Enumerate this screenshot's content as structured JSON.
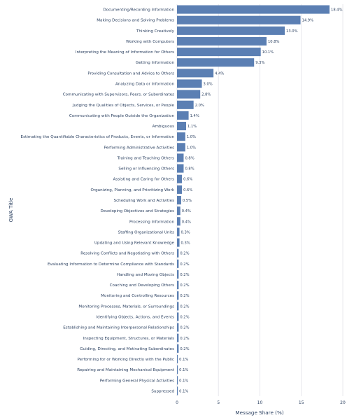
{
  "chart_data": {
    "type": "bar",
    "orientation": "horizontal",
    "title": "",
    "xlabel": "Message Share (%)",
    "ylabel": "GWA Title",
    "xlim": [
      0,
      20
    ],
    "xticks": [
      "0",
      "5",
      "10",
      "15",
      "20"
    ],
    "grid": true,
    "bar_color": "#5b7fb3",
    "categories": [
      "Documenting/Recording Information",
      "Making Decisions and Solving Problems",
      "Thinking Creatively",
      "Working with Computers",
      "Interpreting the Meaning of Information for Others",
      "Getting Information",
      "Providing Consultation and Advice to Others",
      "Analyzing Data or Information",
      "Communicating with Supervisors, Peers, or Subordinates",
      "Judging the Qualities of Objects, Services, or People",
      "Communicating with People Outside the Organization",
      "Ambiguous",
      "Estimating the Quantifiable Characteristics of Products, Events, or Information",
      "Performing Administrative Activities",
      "Training and Teaching Others",
      "Selling or Influencing Others",
      "Assisting and Caring for Others",
      "Organizing, Planning, and Prioritizing Work",
      "Scheduling Work and Activities",
      "Developing Objectives and Strategies",
      "Processing Information",
      "Staffing Organizational Units",
      "Updating and Using Relevant Knowledge",
      "Resolving Conflicts and Negotiating with Others",
      "Evaluating Information to Determine Compliance with Standards",
      "Handling and Moving Objects",
      "Coaching and Developing Others",
      "Monitoring and Controlling Resources",
      "Monitoring Processes, Materials, or Surroundings",
      "Identifying Objects, Actions, and Events",
      "Establishing and Maintaining Interpersonal Relationships",
      "Inspecting Equipment, Structures, or Materials",
      "Guiding, Directing, and Motivating Subordinates",
      "Performing for or Working Directly with the Public",
      "Repairing and Maintaining Mechanical Equipment",
      "Performing General Physical Activities",
      "Suppressed"
    ],
    "values": [
      18.4,
      14.9,
      13.0,
      10.8,
      10.1,
      9.3,
      4.4,
      3.0,
      2.8,
      2.0,
      1.4,
      1.1,
      1.0,
      1.0,
      0.8,
      0.8,
      0.6,
      0.6,
      0.5,
      0.4,
      0.4,
      0.3,
      0.3,
      0.2,
      0.2,
      0.2,
      0.2,
      0.2,
      0.2,
      0.2,
      0.2,
      0.2,
      0.2,
      0.1,
      0.1,
      0.1,
      0.1
    ],
    "data_labels": [
      "18.4%",
      "14.9%",
      "13.0%",
      "10.8%",
      "10.1%",
      "9.3%",
      "4.4%",
      "3.0%",
      "2.8%",
      "2.0%",
      "1.4%",
      "1.1%",
      "1.0%",
      "1.0%",
      "0.8%",
      "0.8%",
      "0.6%",
      "0.6%",
      "0.5%",
      "0.4%",
      "0.4%",
      "0.3%",
      "0.3%",
      "0.2%",
      "0.2%",
      "0.2%",
      "0.2%",
      "0.2%",
      "0.2%",
      "0.2%",
      "0.2%",
      "0.2%",
      "0.2%",
      "0.1%",
      "0.1%",
      "0.1%",
      "0.1%"
    ]
  }
}
